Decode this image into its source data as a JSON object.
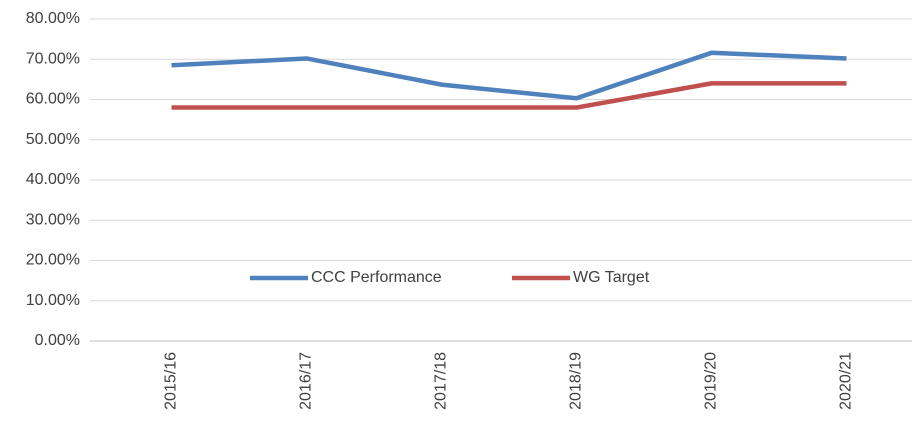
{
  "chart_data": {
    "type": "line",
    "categories": [
      "2015/16",
      "2016/17",
      "2017/18",
      "2018/19",
      "2019/20",
      "2020/21"
    ],
    "series": [
      {
        "name": "CCC Performance",
        "color": "#4f81bd",
        "values": [
          68.5,
          70.2,
          63.7,
          60.3,
          71.6,
          70.2
        ]
      },
      {
        "name": "WG Target",
        "color": "#c0504d",
        "values": [
          58,
          58,
          58,
          58,
          64,
          64
        ]
      }
    ],
    "ylim": [
      0,
      80
    ],
    "yticks": [
      {
        "value": 0,
        "label": "0.00%"
      },
      {
        "value": 10,
        "label": "10.00%"
      },
      {
        "value": 20,
        "label": "20.00%"
      },
      {
        "value": 30,
        "label": "30.00%"
      },
      {
        "value": 40,
        "label": "40.00%"
      },
      {
        "value": 50,
        "label": "50.00%"
      },
      {
        "value": 60,
        "label": "60.00%"
      },
      {
        "value": 70,
        "label": "70.00%"
      },
      {
        "value": 80,
        "label": "80.00%"
      }
    ],
    "grid": true
  }
}
